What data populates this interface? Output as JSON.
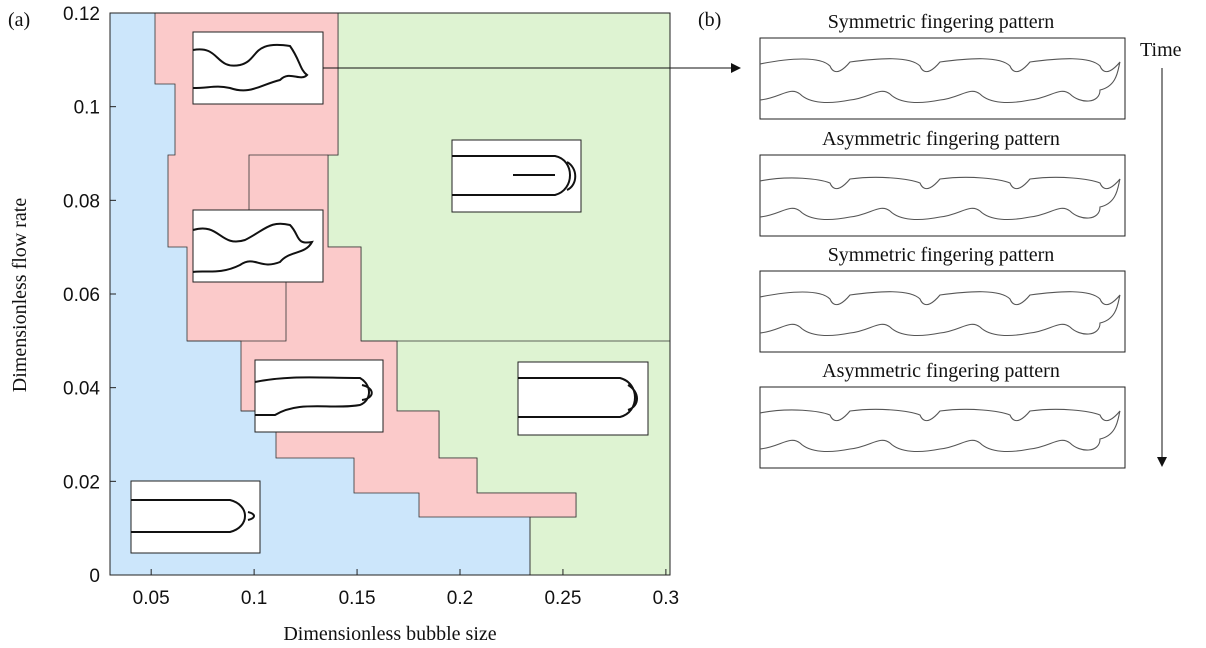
{
  "chart_data": {
    "type": "phase-diagram",
    "panel_label": "(a)",
    "xlabel": "Dimensionless bubble size",
    "ylabel": "Dimensionless flow rate",
    "xlim": [
      0.03,
      0.302
    ],
    "ylim": [
      0,
      0.12
    ],
    "xticks": [
      0.05,
      0.1,
      0.15,
      0.2,
      0.25,
      0.3
    ],
    "yticks": [
      0,
      0.02,
      0.04,
      0.06,
      0.08,
      0.1,
      0.12
    ]
  },
  "panel_b": {
    "label": "(b)",
    "time_label": "Time",
    "titles": [
      "Symmetric fingering pattern",
      "Asymmetric fingering pattern",
      "Symmetric fingering pattern",
      "Asymmetric fingering pattern"
    ]
  }
}
